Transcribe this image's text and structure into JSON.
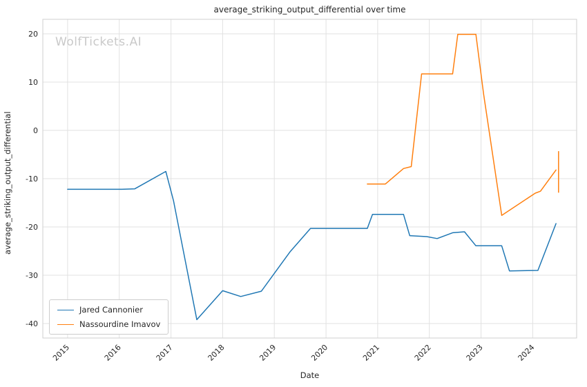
{
  "chart_data": {
    "type": "line",
    "title": "average_striking_output_differential over time",
    "xlabel": "Date",
    "ylabel": "average_striking_output_differential",
    "watermark": "WolfTickets.AI",
    "xlim": [
      2014.52,
      2024.85
    ],
    "ylim": [
      -43,
      23
    ],
    "xticks": [
      2015,
      2016,
      2017,
      2018,
      2019,
      2020,
      2021,
      2022,
      2023,
      2024
    ],
    "yticks": [
      -40,
      -30,
      -20,
      -10,
      0,
      10,
      20
    ],
    "grid": true,
    "grid_color": "#e1e1e1",
    "border_color": "#cfcfcf",
    "tick_label_color": "#262626",
    "legend_position": "lower left",
    "series": [
      {
        "name": "Jared Cannonier",
        "color": "#1f77b4",
        "points": [
          [
            2015.0,
            -12.2
          ],
          [
            2016.05,
            -12.2
          ],
          [
            2016.3,
            -12.1
          ],
          [
            2016.9,
            -8.5
          ],
          [
            2017.05,
            -14.6
          ],
          [
            2017.5,
            -39.2
          ],
          [
            2018.0,
            -33.2
          ],
          [
            2018.35,
            -34.4
          ],
          [
            2018.75,
            -33.3
          ],
          [
            2019.3,
            -25.2
          ],
          [
            2019.7,
            -20.3
          ],
          [
            2020.8,
            -20.3
          ],
          [
            2020.9,
            -17.4
          ],
          [
            2021.5,
            -17.4
          ],
          [
            2021.62,
            -21.8
          ],
          [
            2021.95,
            -22.0
          ],
          [
            2022.15,
            -22.4
          ],
          [
            2022.45,
            -21.2
          ],
          [
            2022.68,
            -21.0
          ],
          [
            2022.9,
            -23.9
          ],
          [
            2023.4,
            -23.9
          ],
          [
            2023.55,
            -29.1
          ],
          [
            2024.1,
            -29.0
          ],
          [
            2024.45,
            -19.3
          ]
        ]
      },
      {
        "name": "Nassourdine Imavov",
        "color": "#ff7f0e",
        "points": [
          [
            2020.8,
            -11.1
          ],
          [
            2021.15,
            -11.1
          ],
          [
            2021.5,
            -7.9
          ],
          [
            2021.65,
            -7.5
          ],
          [
            2021.85,
            11.7
          ],
          [
            2022.45,
            11.7
          ],
          [
            2022.55,
            19.9
          ],
          [
            2022.9,
            19.9
          ],
          [
            2023.05,
            7.5
          ],
          [
            2023.4,
            -17.6
          ],
          [
            2024.05,
            -13.0
          ],
          [
            2024.15,
            -12.6
          ],
          [
            2024.45,
            -8.2
          ]
        ]
      }
    ],
    "end_marker": {
      "x": 2024.5,
      "y_from": -12.9,
      "y_to": -4.3,
      "color": "#ff7f0e"
    }
  }
}
